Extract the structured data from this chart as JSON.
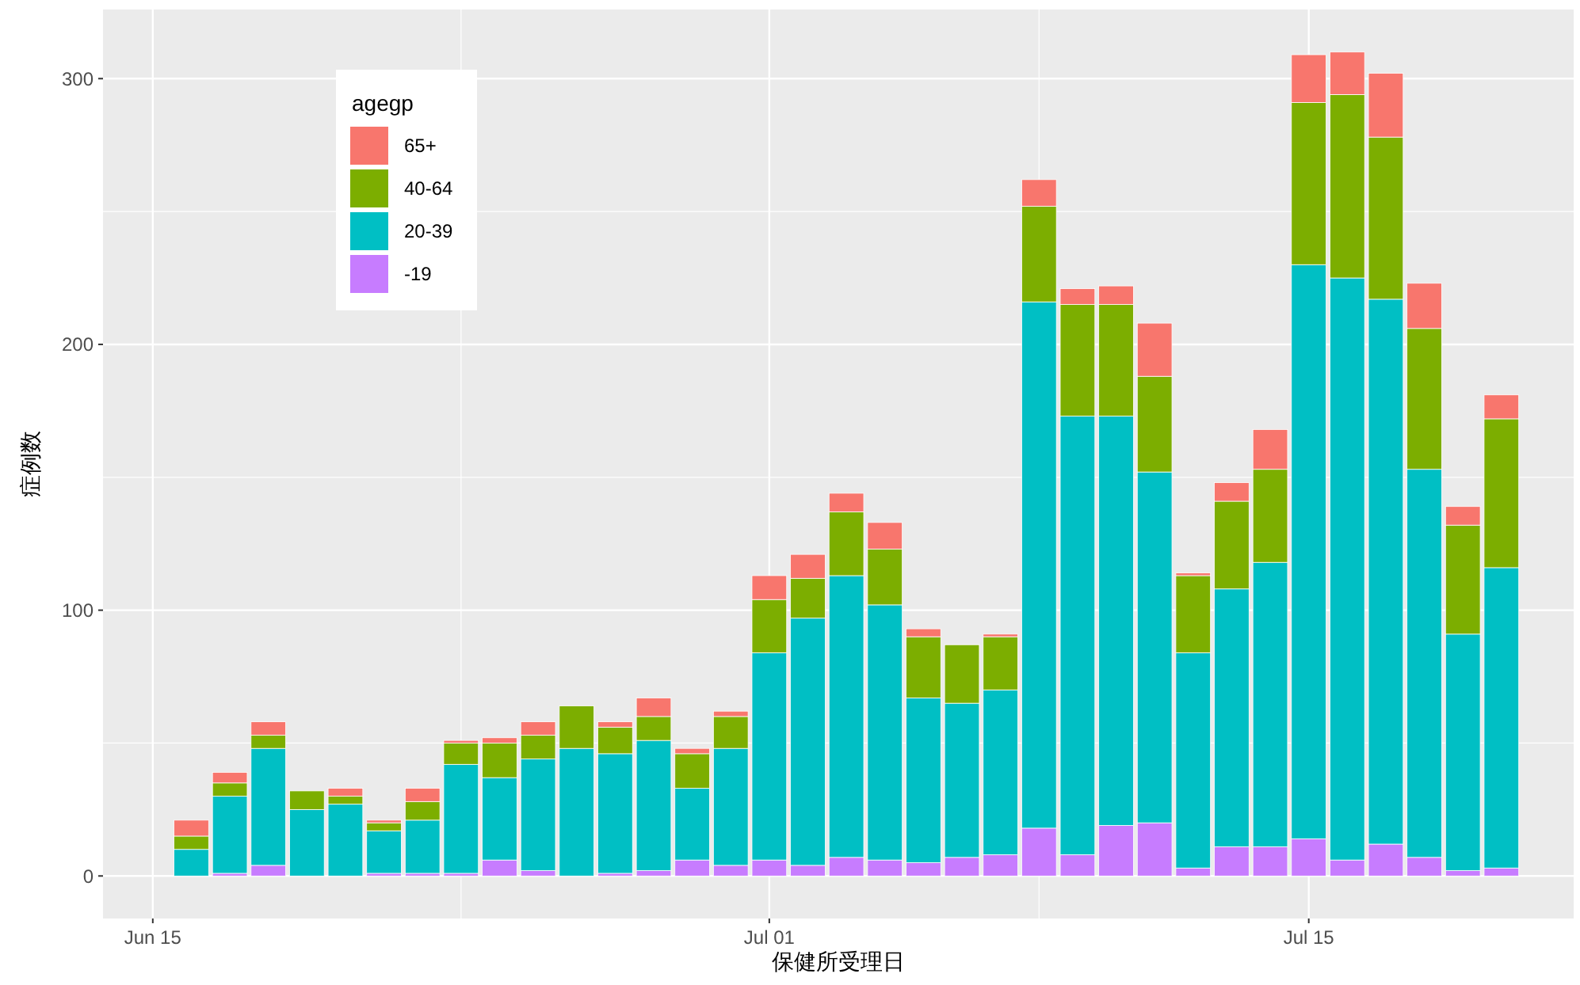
{
  "chart_data": {
    "type": "bar",
    "stacked": true,
    "xlabel": "保健所受理日",
    "ylabel": "症例数",
    "legend_title": "agegp",
    "legend": "top left",
    "grid": true,
    "x": [
      "--06-16",
      "--06-17",
      "--06-18",
      "--06-19",
      "--06-20",
      "--06-21",
      "--06-22",
      "--06-23",
      "--06-24",
      "--06-25",
      "--06-26",
      "--06-27",
      "--06-28",
      "--06-29",
      "--06-30",
      "--07-01",
      "--07-02",
      "--07-03",
      "--07-04",
      "--07-05",
      "--07-06",
      "--07-07",
      "--07-08",
      "--07-09",
      "--07-10",
      "--07-11",
      "--07-12",
      "--07-13",
      "--07-14",
      "--07-15",
      "--07-16",
      "--07-17",
      "--07-18",
      "--07-19",
      "--07-20"
    ],
    "xlim": [
      "--06-13T17:00",
      "--07-21T21:00"
    ],
    "xticks": [
      {
        "value": "--06-15",
        "label": "Jun 15"
      },
      {
        "value": "--07-01",
        "label": "Jul 01"
      },
      {
        "value": "--07-15",
        "label": "Jul 15"
      }
    ],
    "ylim": [
      -16,
      326
    ],
    "yticks": [
      0,
      100,
      200,
      300
    ],
    "series": [
      {
        "name": "-19",
        "color": "#c77cff",
        "values": [
          0,
          1,
          4,
          0,
          0,
          1,
          1,
          1,
          6,
          2,
          0,
          1,
          2,
          6,
          4,
          6,
          4,
          7,
          6,
          5,
          7,
          8,
          18,
          8,
          19,
          20,
          3,
          11,
          11,
          14,
          6,
          12,
          7,
          2,
          3
        ]
      },
      {
        "name": "20-39",
        "color": "#00bfc4",
        "values": [
          10,
          29,
          44,
          25,
          27,
          16,
          20,
          41,
          31,
          42,
          48,
          45,
          49,
          27,
          44,
          78,
          93,
          106,
          96,
          62,
          58,
          62,
          198,
          165,
          154,
          132,
          81,
          97,
          107,
          216,
          219,
          205,
          146,
          89,
          113
        ]
      },
      {
        "name": "40-64",
        "color": "#7cae00",
        "values": [
          5,
          5,
          5,
          7,
          3,
          3,
          7,
          8,
          13,
          9,
          16,
          10,
          9,
          13,
          12,
          20,
          15,
          24,
          21,
          23,
          22,
          20,
          36,
          42,
          42,
          36,
          29,
          33,
          35,
          61,
          69,
          61,
          53,
          41,
          56
        ]
      },
      {
        "name": "65+",
        "color": "#f8766d",
        "values": [
          6,
          4,
          5,
          0,
          3,
          1,
          5,
          1,
          2,
          5,
          0,
          2,
          7,
          2,
          2,
          9,
          9,
          7,
          10,
          3,
          0,
          1,
          10,
          6,
          7,
          20,
          1,
          7,
          15,
          18,
          16,
          24,
          17,
          7,
          9
        ]
      }
    ]
  }
}
